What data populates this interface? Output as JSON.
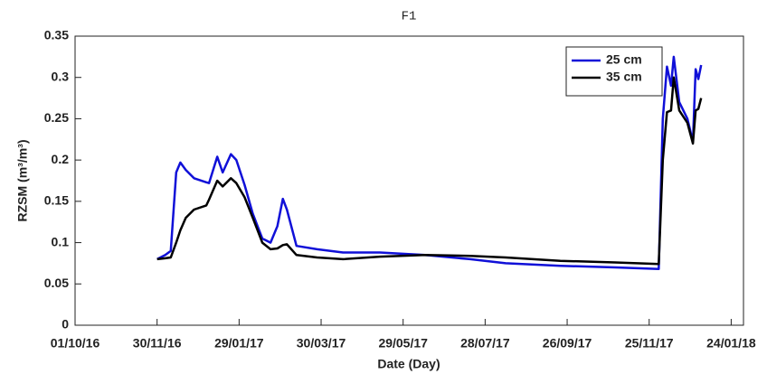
{
  "chart_data": {
    "type": "line",
    "title": "F1",
    "xlabel": "Date (Day)",
    "ylabel": "RZSM (m³/m³)",
    "x": [
      "30/11/16",
      "06/12/16",
      "10/12/16",
      "14/12/16",
      "17/12/16",
      "21/12/16",
      "27/12/16",
      "05/01/17",
      "07/01/17",
      "13/01/17",
      "17/01/17",
      "23/01/17",
      "27/01/17",
      "02/02/17",
      "08/02/17",
      "15/02/17",
      "21/02/17",
      "26/02/17",
      "02/03/17",
      "05/03/17",
      "12/03/17",
      "27/03/17",
      "15/04/17",
      "12/05/17",
      "14/06/17",
      "17/07/17",
      "12/08/17",
      "21/09/17",
      "31/10/17",
      "02/12/17",
      "05/12/17",
      "08/12/17",
      "11/12/17",
      "13/12/17",
      "17/12/17",
      "23/12/17",
      "27/12/17",
      "29/12/17",
      "31/12/17",
      "02/01/18"
    ],
    "series": [
      {
        "name": "25 cm",
        "color": "#1010d8",
        "values": [
          0.08,
          0.085,
          0.09,
          0.185,
          0.197,
          0.188,
          0.178,
          0.173,
          0.172,
          0.204,
          0.185,
          0.207,
          0.2,
          0.17,
          0.135,
          0.105,
          0.1,
          0.12,
          0.153,
          0.14,
          0.096,
          0.092,
          0.088,
          0.088,
          0.085,
          0.08,
          0.075,
          0.072,
          0.07,
          0.068,
          0.25,
          0.313,
          0.29,
          0.325,
          0.27,
          0.25,
          0.222,
          0.31,
          0.298,
          0.315
        ]
      },
      {
        "name": "35 cm",
        "color": "#000000",
        "values": [
          0.08,
          0.081,
          0.082,
          0.1,
          0.115,
          0.13,
          0.14,
          0.145,
          0.152,
          0.175,
          0.168,
          0.178,
          0.172,
          0.155,
          0.13,
          0.1,
          0.092,
          0.093,
          0.097,
          0.098,
          0.085,
          0.082,
          0.08,
          0.083,
          0.085,
          0.084,
          0.082,
          0.078,
          0.076,
          0.074,
          0.2,
          0.258,
          0.26,
          0.3,
          0.26,
          0.245,
          0.22,
          0.26,
          0.262,
          0.275
        ]
      }
    ],
    "xlim": [
      "01/10/16",
      "02/02/18"
    ],
    "xticks": [
      "01/10/16",
      "30/11/16",
      "29/01/17",
      "30/03/17",
      "29/05/17",
      "28/07/17",
      "26/09/17",
      "25/11/17",
      "24/01/18"
    ],
    "ylim": [
      0,
      0.35
    ],
    "yticks": [
      0,
      0.05,
      0.1,
      0.15,
      0.2,
      0.25,
      0.3,
      0.35
    ],
    "grid": false,
    "legend": "northeast"
  }
}
